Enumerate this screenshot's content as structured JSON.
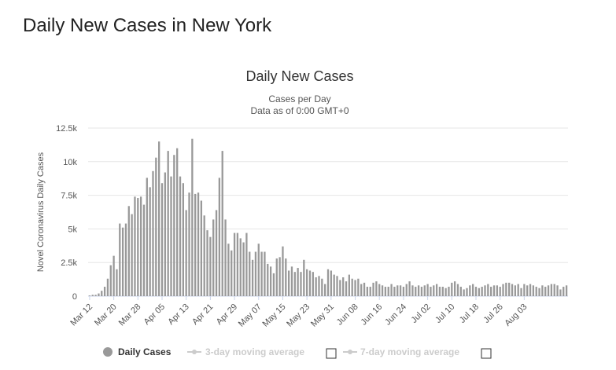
{
  "page": {
    "title": "Daily New Cases in New York"
  },
  "legend": [
    {
      "label": "Daily Cases",
      "color": "#999999",
      "active": true
    },
    {
      "label": "3-day moving average",
      "color": "#cccccc",
      "active": false
    },
    {
      "label": "7-day moving average",
      "color": "#cccccc",
      "active": false
    }
  ],
  "chart_data": {
    "type": "bar",
    "title": "Daily New Cases",
    "subtitle_lines": [
      "Cases per Day",
      "Data as of 0:00 GMT+0"
    ],
    "xlabel": "",
    "ylabel": "Novel Coronavirus Daily Cases",
    "ylim": [
      0,
      12500
    ],
    "yticks": [
      0,
      2500,
      5000,
      7500,
      10000,
      12500
    ],
    "ytick_labels": [
      "0",
      "2.5k",
      "5k",
      "7.5k",
      "10k",
      "12.5k"
    ],
    "xtick_labels": [
      "Mar 12",
      "Mar 20",
      "Mar 28",
      "Apr 05",
      "Apr 13",
      "Apr 21",
      "Apr 29",
      "May 07",
      "May 15",
      "May 23",
      "May 31",
      "Jun 08",
      "Jun 16",
      "Jun 24",
      "Jul 02",
      "Jul 10",
      "Jul 18",
      "Jul 26",
      "Aug 03"
    ],
    "grid": true,
    "legend_position": "bottom",
    "bar_color": "#999999",
    "values": [
      50,
      100,
      100,
      200,
      400,
      700,
      1300,
      2300,
      3000,
      2000,
      5400,
      5100,
      5400,
      6700,
      6100,
      7400,
      7300,
      7400,
      6800,
      8800,
      8100,
      9300,
      10300,
      11500,
      8400,
      9200,
      10800,
      8900,
      10500,
      11000,
      8900,
      8400,
      6400,
      7700,
      11700,
      7600,
      7700,
      7100,
      6000,
      4900,
      4400,
      5700,
      6400,
      8800,
      10800,
      5700,
      3900,
      3400,
      4700,
      4700,
      4300,
      4000,
      4700,
      3300,
      2700,
      3300,
      3900,
      3300,
      3300,
      2400,
      2200,
      1700,
      2800,
      2900,
      3700,
      2800,
      1900,
      2200,
      1800,
      2100,
      1800,
      2700,
      2000,
      1900,
      1800,
      1400,
      1500,
      1300,
      900,
      2000,
      1900,
      1600,
      1500,
      1200,
      1400,
      1100,
      1600,
      1300,
      1200,
      1300,
      900,
      1000,
      700,
      700,
      1000,
      1100,
      900,
      800,
      700,
      700,
      900,
      700,
      800,
      800,
      700,
      900,
      1100,
      800,
      700,
      800,
      700,
      800,
      900,
      700,
      800,
      900,
      700,
      700,
      600,
      700,
      1000,
      1100,
      900,
      700,
      500,
      600,
      800,
      900,
      700,
      600,
      700,
      800,
      900,
      700,
      800,
      800,
      700,
      900,
      1000,
      1000,
      900,
      800,
      900,
      600,
      900,
      800,
      900,
      800,
      700,
      600,
      800,
      700,
      800,
      900,
      900,
      800,
      500,
      700,
      800
    ]
  }
}
